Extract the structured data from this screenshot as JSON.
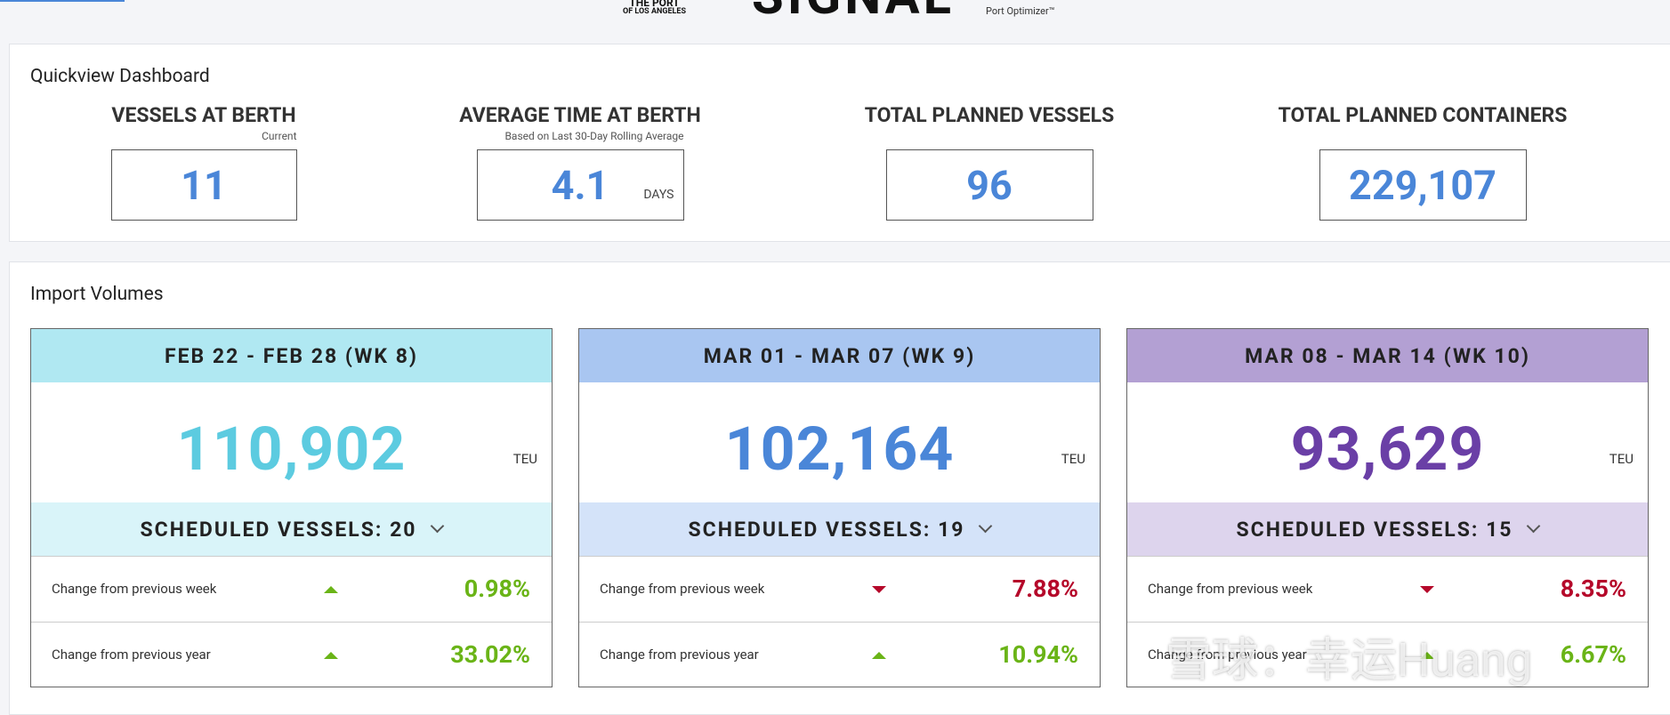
{
  "header": {
    "logo_port_top": "THE PORT",
    "logo_port_bottom": "OF LOS ANGELES",
    "logo_signal": "SIGNAL",
    "logo_sub": "Port Optimizer™"
  },
  "quickview": {
    "title": "Quickview Dashboard",
    "kpis": [
      {
        "title": "VESSELS AT BERTH",
        "subtitle": "Current",
        "value": "11"
      },
      {
        "title": "AVERAGE TIME AT BERTH",
        "subtitle": "Based on Last 30-Day Rolling Average",
        "value": "4.1",
        "unit": "DAYS"
      },
      {
        "title": "TOTAL PLANNED VESSELS",
        "value": "96"
      },
      {
        "title": "TOTAL PLANNED CONTAINERS",
        "value": "229,107"
      }
    ]
  },
  "imports": {
    "title": "Import Volumes",
    "cards": [
      {
        "header": "FEB 22 - FEB 28 (WK 8)",
        "value": "110,902",
        "unit": "TEU",
        "scheduled": "SCHEDULED VESSELS: 20",
        "header_color": "#b0e8f2",
        "band_color": "#d9f4f9",
        "value_color": "#5ccbe0",
        "rows": [
          {
            "label": "Change from previous week",
            "direction": "up",
            "value": "0.98%"
          },
          {
            "label": "Change from previous year",
            "direction": "up",
            "value": "33.02%"
          }
        ]
      },
      {
        "header": "MAR 01 - MAR 07 (WK 9)",
        "value": "102,164",
        "unit": "TEU",
        "scheduled": "SCHEDULED VESSELS: 19",
        "header_color": "#a9c6f1",
        "band_color": "#d4e3f9",
        "value_color": "#4a86d8",
        "rows": [
          {
            "label": "Change from previous week",
            "direction": "down",
            "value": "7.88%"
          },
          {
            "label": "Change from previous year",
            "direction": "up",
            "value": "10.94%"
          }
        ]
      },
      {
        "header": "MAR 08 - MAR 14 (WK 10)",
        "value": "93,629",
        "unit": "TEU",
        "scheduled": "SCHEDULED VESSELS: 15",
        "header_color": "#b3a0d3",
        "band_color": "#ddd4ed",
        "value_color": "#6a3fa6",
        "rows": [
          {
            "label": "Change from previous week",
            "direction": "down",
            "value": "8.35%"
          },
          {
            "label": "Change from previous year",
            "direction": "up",
            "value": "6.67%"
          }
        ]
      }
    ]
  },
  "watermark": "雪球：幸运Huang"
}
